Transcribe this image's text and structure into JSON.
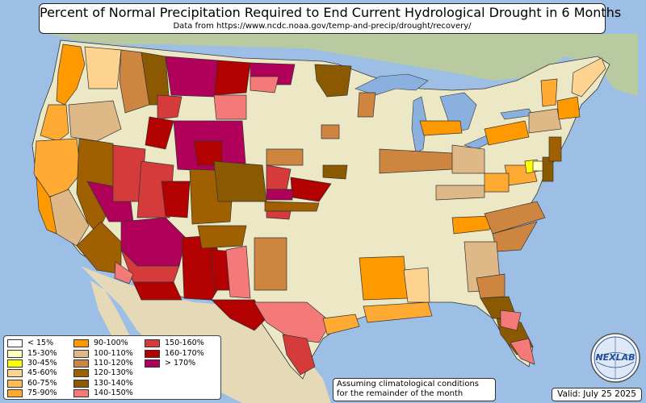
{
  "title": "Percent of Normal Precipitation Required to End Current Hydrological Drought in 6 Months",
  "subtitle": "Data from https://www.ncdc.noaa.gov/temp-and-precip/drought/recovery/",
  "legend": [
    {
      "label": "< 15%",
      "color": "#ffffff"
    },
    {
      "label": "15-30%",
      "color": "#ffffc0"
    },
    {
      "label": "30-45%",
      "color": "#ffff00"
    },
    {
      "label": "45-60%",
      "color": "#fed28f"
    },
    {
      "label": "60-75%",
      "color": "#fdbb5c"
    },
    {
      "label": "75-90%",
      "color": "#ffaa33"
    },
    {
      "label": "90-100%",
      "color": "#ff9900"
    },
    {
      "label": "100-110%",
      "color": "#deb887"
    },
    {
      "label": "110-120%",
      "color": "#cd853f"
    },
    {
      "label": "120-130%",
      "color": "#a06000"
    },
    {
      "label": "130-140%",
      "color": "#8b5a00"
    },
    {
      "label": "140-150%",
      "color": "#f47a7a"
    },
    {
      "label": "150-160%",
      "color": "#d63b3b"
    },
    {
      "label": "160-170%",
      "color": "#b30000"
    },
    {
      "label": "> 170%",
      "color": "#b0005a"
    }
  ],
  "note_line1": "Assuming climatological conditions",
  "note_line2": "for the remainder of the month",
  "valid": "Valid: July 25 2025",
  "logo_text": "NEXLAB",
  "colors": {
    "ocean": "#9dbfe6",
    "land": "#ece7c4",
    "lakes": "#8ab0e0",
    "mexico": "#e6d9b8",
    "canada": "#b9c9a0"
  }
}
